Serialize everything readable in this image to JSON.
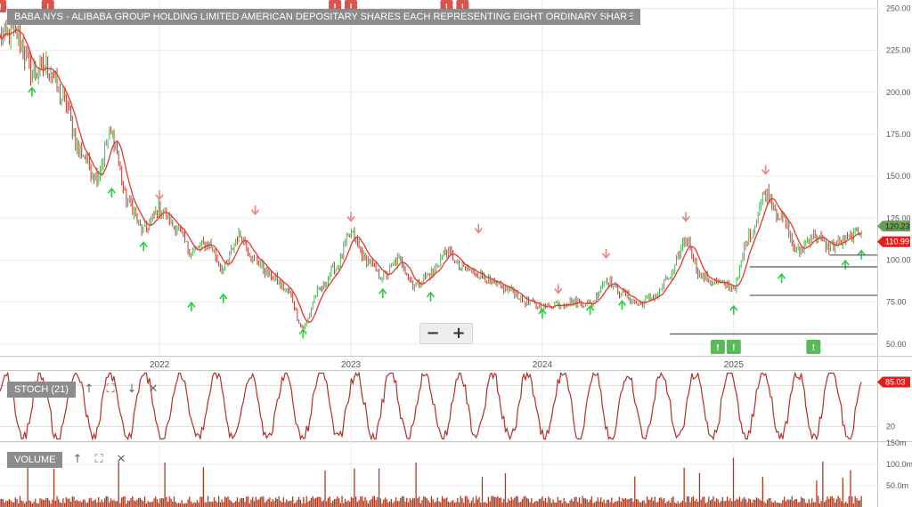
{
  "main_pane": {
    "title": "BABA.NYS - ALIBABA GROUP HOLDING LIMITED AMERICAN DEPOSITARY SHARES EACH REPRESENTING EIGHT ORDINARY SHARE",
    "icons": [
      "expand-icon",
      "arrow-down-icon"
    ]
  },
  "stoch_pane": {
    "title": "STOCH (21)",
    "icons": [
      "arrow-up-icon",
      "expand-icon",
      "arrow-down-icon",
      "close-icon"
    ]
  },
  "volume_pane": {
    "title": "VOLUME",
    "icons": [
      "arrow-up-icon",
      "expand-icon",
      "close-icon"
    ]
  },
  "zoom": {
    "minus": "−",
    "plus": "+"
  },
  "colors": {
    "up_arrow": "#2ecc40",
    "down_arrow": "#f08080",
    "ma_line": "#e8372d",
    "candle_up": "#4caf50",
    "candle_down": "#c0392b",
    "volume": "#b03a1e",
    "stoch": "#b0302a",
    "event_green": "#5cb85c",
    "event_red": "#d9534f",
    "last_price_tag": "#6a9e54",
    "ma_tag": "#e31e1e"
  },
  "chart_data": [
    {
      "type": "line",
      "name": "price",
      "y_ticks": [
        "250.00",
        "225.00",
        "200.00",
        "175.00",
        "150.00",
        "125.00",
        "100.00",
        "75.00",
        "50.00"
      ],
      "y_tick_values": [
        250,
        225,
        200,
        175,
        150,
        125,
        100,
        75,
        50
      ],
      "ylim": [
        43,
        255
      ],
      "x_ticks": [
        "2022",
        "2023",
        "2024",
        "2025"
      ],
      "x_range": [
        "2021-03",
        "2025-10"
      ],
      "last_price": "120.23",
      "ma_value": "110.99",
      "series": [
        {
          "x": [
            "2021-03",
            "2021-04",
            "2021-05",
            "2021-06",
            "2021-07",
            "2021-08",
            "2021-09",
            "2021-10",
            "2021-11",
            "2021-12",
            "2022-01",
            "2022-02",
            "2022-03",
            "2022-04",
            "2022-05",
            "2022-06",
            "2022-07",
            "2022-08",
            "2022-09",
            "2022-10",
            "2022-11",
            "2022-12",
            "2023-01",
            "2023-02",
            "2023-03",
            "2023-04",
            "2023-05",
            "2023-06",
            "2023-07",
            "2023-08",
            "2023-09",
            "2023-10",
            "2023-11",
            "2023-12",
            "2024-01",
            "2024-02",
            "2024-03",
            "2024-04",
            "2024-05",
            "2024-06",
            "2024-07",
            "2024-08",
            "2024-09",
            "2024-10",
            "2024-11",
            "2024-12",
            "2025-01",
            "2025-02",
            "2025-03",
            "2025-04",
            "2025-05",
            "2025-06",
            "2025-07",
            "2025-08",
            "2025-09"
          ],
          "y": [
            232,
            236,
            212,
            215,
            195,
            165,
            150,
            175,
            135,
            118,
            130,
            120,
            105,
            110,
            95,
            115,
            100,
            90,
            82,
            60,
            82,
            95,
            115,
            100,
            90,
            100,
            85,
            92,
            105,
            95,
            92,
            85,
            82,
            75,
            72,
            74,
            75,
            74,
            88,
            80,
            74,
            78,
            90,
            112,
            90,
            86,
            84,
            115,
            140,
            125,
            105,
            115,
            108,
            112,
            118
          ]
        }
      ],
      "annotations": {
        "up_arrows": [
          {
            "x": "2021-05",
            "y": 200
          },
          {
            "x": "2021-10",
            "y": 140
          },
          {
            "x": "2021-12",
            "y": 108
          },
          {
            "x": "2022-03",
            "y": 72
          },
          {
            "x": "2022-05",
            "y": 77
          },
          {
            "x": "2022-10",
            "y": 56
          },
          {
            "x": "2023-03",
            "y": 80
          },
          {
            "x": "2023-06",
            "y": 78
          },
          {
            "x": "2024-01",
            "y": 68
          },
          {
            "x": "2024-04",
            "y": 70
          },
          {
            "x": "2024-06",
            "y": 73
          },
          {
            "x": "2025-01",
            "y": 70
          },
          {
            "x": "2025-04",
            "y": 89
          },
          {
            "x": "2025-08",
            "y": 97
          },
          {
            "x": "2025-09",
            "y": 103
          }
        ],
        "down_arrows": [
          {
            "x": "2022-01",
            "y": 139
          },
          {
            "x": "2022-07",
            "y": 130
          },
          {
            "x": "2023-01",
            "y": 126
          },
          {
            "x": "2023-09",
            "y": 119
          },
          {
            "x": "2024-02",
            "y": 83
          },
          {
            "x": "2024-05",
            "y": 104
          },
          {
            "x": "2024-10",
            "y": 126
          },
          {
            "x": "2025-03",
            "y": 154
          }
        ],
        "event_flags_top": [
          {
            "x": "2021-03",
            "label": "!"
          },
          {
            "x": "2021-06",
            "label": "!"
          },
          {
            "x": "2022-12",
            "label": "!"
          },
          {
            "x": "2023-01",
            "label": "!"
          },
          {
            "x": "2023-07",
            "label": "!"
          },
          {
            "x": "2023-08",
            "label": "!"
          }
        ],
        "event_flags_bottom": [
          {
            "x": "2024-12",
            "label": "!"
          },
          {
            "x": "2025-01",
            "label": "!"
          },
          {
            "x": "2025-06",
            "label": "!"
          }
        ],
        "horizontal_levels": [
          {
            "y": 103,
            "from": "2025-07",
            "to": "2025-10"
          },
          {
            "y": 96,
            "from": "2025-02",
            "to": "2025-10"
          },
          {
            "y": 79,
            "from": "2025-02",
            "to": "2025-10"
          },
          {
            "y": 56,
            "from": "2024-09",
            "to": "2025-10"
          }
        ]
      }
    },
    {
      "type": "line",
      "name": "stochastic",
      "y_ticks": [
        "20"
      ],
      "y_tick_values": [
        20
      ],
      "ylim": [
        0,
        100
      ],
      "last_value": "85.03"
    },
    {
      "type": "bar",
      "name": "volume",
      "y_ticks": [
        "150m",
        "100.0m",
        "50.0m"
      ],
      "y_tick_values": [
        150,
        100,
        50
      ],
      "ylim": [
        0,
        150
      ]
    }
  ]
}
